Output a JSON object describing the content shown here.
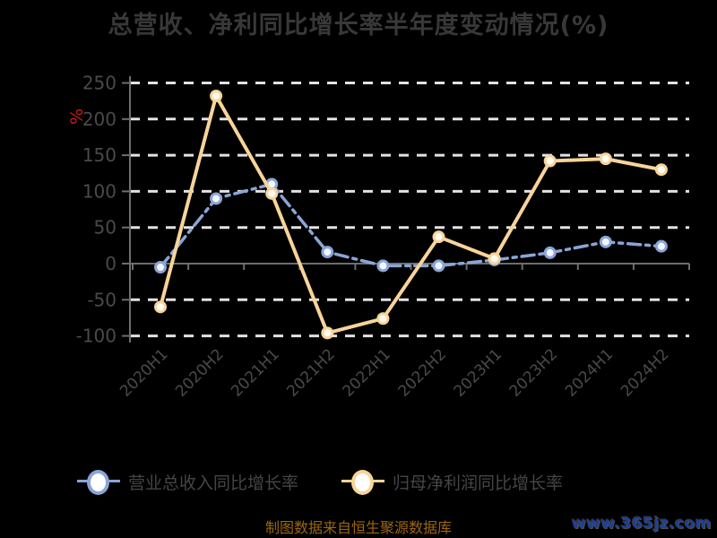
{
  "header": {
    "title": "总营收、净利同比增长率半年度变动情况(%)"
  },
  "chart_data": {
    "type": "line",
    "title": "总营收、净利同比增长率半年度变动情况(%)",
    "xlabel": "",
    "ylabel": "%",
    "categories": [
      "2020H1",
      "2020H2",
      "2021H1",
      "2021H2",
      "2022H1",
      "2022H2",
      "2023H1",
      "2023H2",
      "2024H1",
      "2024H2"
    ],
    "series": [
      {
        "name": "营业总收入同比增长率",
        "color": "#8aa5d6",
        "marker_fill": "#f2f6ff",
        "line_style": "dash-dot",
        "values": [
          -5,
          90,
          110,
          16,
          -3,
          -3,
          5,
          15,
          30,
          24
        ]
      },
      {
        "name": "归母净利润同比增长率",
        "color": "#f8d49a",
        "marker_fill": "#fffdf4",
        "line_style": "solid",
        "values": [
          -60,
          232,
          97,
          -96,
          -76,
          37,
          7,
          142,
          145,
          130
        ]
      }
    ],
    "ylim": [
      -100,
      250
    ],
    "yticks": [
      250,
      200,
      150,
      100,
      50,
      0,
      -50,
      -100
    ],
    "grid": true,
    "legend_position": "bottom"
  },
  "footer": {
    "source_note": "制图数据来自恒生聚源数据库",
    "watermark": "www.365jz.com"
  },
  "colors": {
    "background": "#000000",
    "title": "#383838",
    "axis": "#6e6e6e",
    "gridline": "#e2e2e2",
    "tick_label": "#4a4a4a",
    "legend_text": "#454545",
    "ylabel_percent": "#c81e1e",
    "source_note": "#9c6610",
    "watermark": "#1e3f96"
  }
}
